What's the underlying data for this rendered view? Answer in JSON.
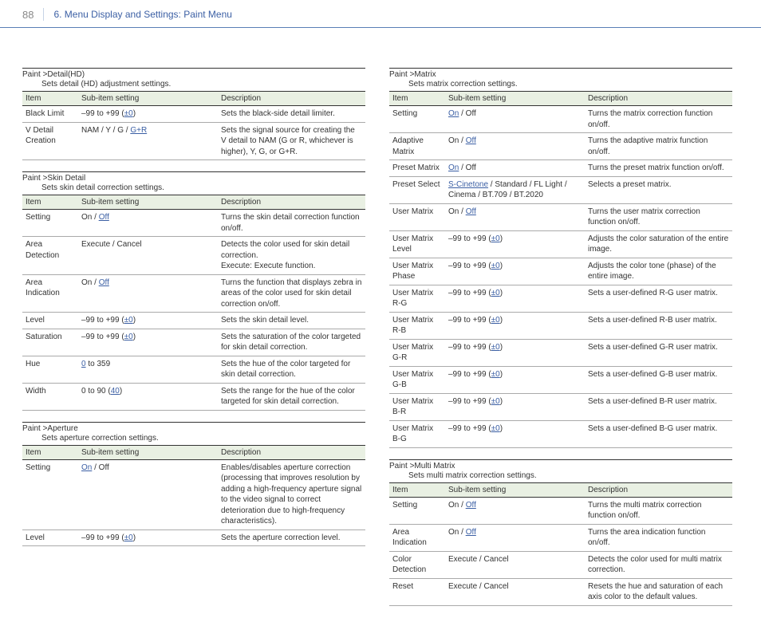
{
  "header": {
    "page_num": "88",
    "breadcrumb": "6. Menu Display and Settings: Paint Menu"
  },
  "cols": {
    "h_item": "Item",
    "h_sub": "Sub-item setting",
    "h_desc": "Description"
  },
  "left": [
    {
      "title": "Paint >Detail(HD)",
      "desc": "Sets detail (HD) adjustment settings.",
      "rows": [
        {
          "item": "Black Limit",
          "sub": "–99 to +99 (<span class='link'>±0</span>)",
          "desc": "Sets the black-side detail limiter."
        },
        {
          "item": "V Detail Creation",
          "sub": "NAM / Y / G / <span class='link'>G+R</span>",
          "desc": "Sets the signal source for creating the V detail to NAM (G or R, whichever is higher), Y, G, or G+R."
        }
      ]
    },
    {
      "title": "Paint >Skin Detail",
      "desc": "Sets skin detail correction settings.",
      "rows": [
        {
          "item": "Setting",
          "sub": "On / <span class='link'>Off</span>",
          "desc": "Turns the skin detail correction function on/off."
        },
        {
          "item": "Area Detection",
          "sub": "Execute / Cancel",
          "desc": "Detects the color used for skin detail correction.<br>Execute: Execute function."
        },
        {
          "item": "Area Indication",
          "sub": "On / <span class='link'>Off</span>",
          "desc": "Turns the function that displays zebra in areas of the color used for skin detail correction on/off."
        },
        {
          "item": "Level",
          "sub": "–99 to +99 (<span class='link'>±0</span>)",
          "desc": "Sets the skin detail level."
        },
        {
          "item": "Saturation",
          "sub": "–99 to +99 (<span class='link'>±0</span>)",
          "desc": "Sets the saturation of the color targeted for skin detail correction."
        },
        {
          "item": "Hue",
          "sub": "<span class='link'>0</span> to 359",
          "desc": "Sets the hue of the color targeted for skin detail correction."
        },
        {
          "item": "Width",
          "sub": "0 to 90 (<span class='link'>40</span>)",
          "desc": "Sets the range for the hue of the color targeted for skin detail correction."
        }
      ]
    },
    {
      "title": "Paint >Aperture",
      "desc": "Sets aperture correction settings.",
      "rows": [
        {
          "item": "Setting",
          "sub": "<span class='link'>On</span> / Off",
          "desc": "Enables/disables aperture correction (processing that improves resolution by adding a high-frequency aperture signal to the video signal to correct deterioration due to high-frequency characteristics)."
        },
        {
          "item": "Level",
          "sub": "–99 to +99 (<span class='link'>±0</span>)",
          "desc": "Sets the aperture correction level."
        }
      ]
    }
  ],
  "right": [
    {
      "title": "Paint >Matrix",
      "desc": "Sets matrix correction settings.",
      "rows": [
        {
          "item": "Setting",
          "sub": "<span class='link'>On</span> / Off",
          "desc": "Turns the matrix correction function on/off."
        },
        {
          "item": "Adaptive Matrix",
          "sub": "On / <span class='link'>Off</span>",
          "desc": "Turns the adaptive matrix function on/off."
        },
        {
          "item": "Preset Matrix",
          "sub": "<span class='link'>On</span> / Off",
          "desc": "Turns the preset matrix function on/off."
        },
        {
          "item": "Preset Select",
          "sub": "<span class='link'>S-Cinetone</span> / Standard / FL Light / Cinema / BT.709 / BT.2020",
          "desc": "Selects a preset matrix."
        },
        {
          "item": "User Matrix",
          "sub": "On / <span class='link'>Off</span>",
          "desc": "Turns the user matrix correction function on/off."
        },
        {
          "item": "User Matrix Level",
          "sub": "–99 to +99 (<span class='link'>±0</span>)",
          "desc": "Adjusts the color saturation of the entire image."
        },
        {
          "item": "User Matrix Phase",
          "sub": "–99 to +99 (<span class='link'>±0</span>)",
          "desc": "Adjusts the color tone (phase) of the entire image."
        },
        {
          "item": "User Matrix R-G",
          "sub": "–99 to +99 (<span class='link'>±0</span>)",
          "desc": "Sets a user-defined R-G user matrix."
        },
        {
          "item": "User Matrix R-B",
          "sub": "–99 to +99 (<span class='link'>±0</span>)",
          "desc": "Sets a user-defined R-B user matrix."
        },
        {
          "item": "User Matrix G-R",
          "sub": "–99 to +99 (<span class='link'>±0</span>)",
          "desc": "Sets a user-defined G-R user matrix."
        },
        {
          "item": "User Matrix G-B",
          "sub": "–99 to +99 (<span class='link'>±0</span>)",
          "desc": "Sets a user-defined G-B user matrix."
        },
        {
          "item": "User Matrix B-R",
          "sub": "–99 to +99 (<span class='link'>±0</span>)",
          "desc": "Sets a user-defined B-R user matrix."
        },
        {
          "item": "User Matrix B-G",
          "sub": "–99 to +99 (<span class='link'>±0</span>)",
          "desc": "Sets a user-defined B-G user matrix."
        }
      ]
    },
    {
      "title": "Paint >Multi Matrix",
      "desc": "Sets multi matrix correction settings.",
      "rows": [
        {
          "item": "Setting",
          "sub": "On / <span class='link'>Off</span>",
          "desc": "Turns the multi matrix correction function on/off."
        },
        {
          "item": "Area Indication",
          "sub": "On / <span class='link'>Off</span>",
          "desc": "Turns the area indication function on/off."
        },
        {
          "item": "Color Detection",
          "sub": "Execute / Cancel",
          "desc": "Detects the color used for multi matrix correction."
        },
        {
          "item": "Reset",
          "sub": "Execute / Cancel",
          "desc": "Resets the hue and saturation of each axis color to the default values."
        }
      ]
    }
  ]
}
